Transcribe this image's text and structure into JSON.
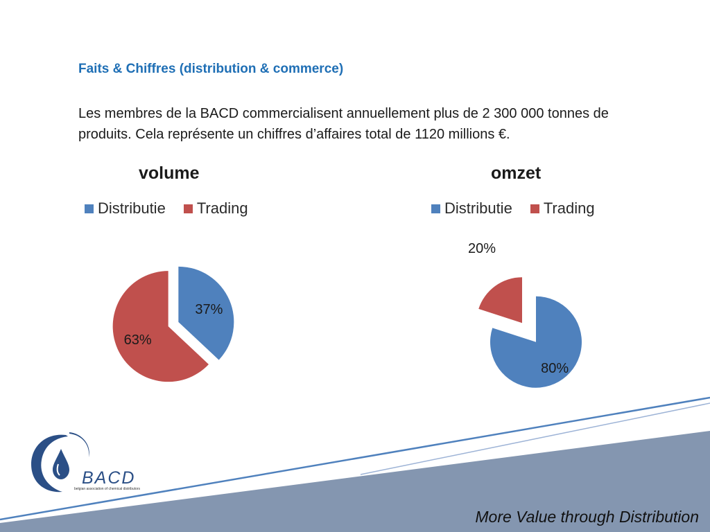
{
  "slide": {
    "heading": "Faits & Chiffres (distribution & commerce)",
    "body": "Les membres de la BACD commercialisent annuellement plus de 2 300 000 tonnes de produits. Cela représente un chiffres d’affaires total de 1120 millions €.",
    "tagline": "More Value through Distribution"
  },
  "logo": {
    "name": "BACD",
    "subtitle": "belgian association of chemical distributors"
  },
  "colors": {
    "distributie": "#4f81bd",
    "trading": "#c0504d",
    "heading": "#1f6fb5",
    "footer_band": "#8496b0",
    "footer_line": "#4f81bd"
  },
  "chart_data": [
    {
      "type": "pie",
      "title": "volume",
      "categories": [
        "Distributie",
        "Trading"
      ],
      "values": [
        37,
        63
      ],
      "labels": [
        "37%",
        "63%"
      ],
      "exploded": true,
      "legend": "top"
    },
    {
      "type": "pie",
      "title": "omzet",
      "categories": [
        "Distributie",
        "Trading"
      ],
      "values": [
        80,
        20
      ],
      "labels": [
        "80%",
        "20%"
      ],
      "exploded": true,
      "legend": "top"
    }
  ]
}
